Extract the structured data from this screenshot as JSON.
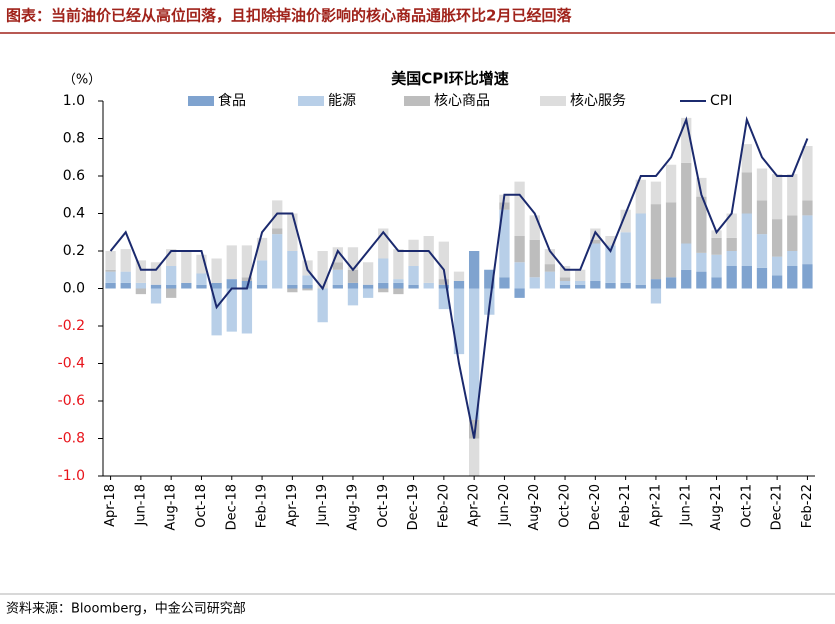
{
  "header": "图表：当前油价已经从高位回落，且扣除掉油价影响的核心商品通胀环比2月已经回落",
  "source": "资料来源：Bloomberg，中金公司研究部",
  "chart_data": {
    "type": "bar",
    "title": "美国CPI环比增速",
    "y_unit": "（%）",
    "categories": [
      "Apr-18",
      null,
      "Jun-18",
      null,
      "Aug-18",
      null,
      "Oct-18",
      null,
      "Dec-18",
      null,
      "Feb-19",
      null,
      "Apr-19",
      null,
      "Jun-19",
      null,
      "Aug-19",
      null,
      "Oct-19",
      null,
      "Dec-19",
      null,
      "Feb-20",
      null,
      "Apr-20",
      null,
      "Jun-20",
      null,
      "Aug-20",
      null,
      "Oct-20",
      null,
      "Dec-20",
      null,
      "Feb-21",
      null,
      "Apr-21",
      null,
      "Jun-21",
      null,
      "Aug-21",
      null,
      "Oct-21",
      null,
      "Dec-21",
      null,
      "Feb-22"
    ],
    "series": [
      {
        "name": "食品",
        "kind": "bar",
        "color": "#7fa3cf",
        "values": [
          0.03,
          0.03,
          0,
          0.02,
          0.02,
          0.03,
          0.02,
          0.03,
          0.05,
          0.04,
          0.02,
          0,
          0.02,
          0.02,
          0,
          0.02,
          0.03,
          0.02,
          0.03,
          0.03,
          0.02,
          0,
          0.02,
          0.04,
          0.2,
          0.1,
          0.06,
          -0.05,
          0,
          0,
          0.02,
          0.02,
          0.04,
          0.03,
          0.03,
          0.02,
          0.05,
          0.06,
          0.1,
          0.09,
          0.06,
          0.12,
          0.12,
          0.11,
          0.07,
          0.12,
          0.13
        ]
      },
      {
        "name": "能源",
        "kind": "bar",
        "color": "#b8cfe8",
        "values": [
          0.06,
          0.06,
          0.03,
          -0.08,
          0.1,
          0,
          0.06,
          -0.25,
          -0.23,
          -0.24,
          0.13,
          0.29,
          0.18,
          0.05,
          -0.18,
          0.08,
          -0.09,
          -0.05,
          0.13,
          0.02,
          0.1,
          0.03,
          -0.11,
          -0.35,
          -0.7,
          -0.14,
          0.36,
          0.14,
          0.06,
          0.09,
          0.02,
          0.02,
          0.2,
          0.2,
          0.27,
          0.38,
          -0.08,
          0,
          0.14,
          0.1,
          0.12,
          0.08,
          0.28,
          0.18,
          0.1,
          0.08,
          0.26
        ]
      },
      {
        "name": "核心商品",
        "kind": "bar",
        "color": "#bdbdbd",
        "values": [
          0.01,
          0,
          -0.03,
          0,
          -0.05,
          0,
          0,
          0,
          0,
          0.02,
          0,
          0.03,
          -0.02,
          -0.01,
          0,
          0.04,
          0.07,
          0,
          -0.02,
          -0.03,
          0,
          0,
          0.03,
          0,
          -0.1,
          0,
          0.04,
          0.14,
          0.2,
          0.04,
          0.02,
          0,
          0.02,
          0,
          0,
          0,
          0.4,
          0.4,
          0.43,
          0.3,
          0.09,
          0.07,
          0.22,
          0.18,
          0.2,
          0.19,
          0.08
        ]
      },
      {
        "name": "核心服务",
        "kind": "bar",
        "color": "#dddddd",
        "values": [
          0.1,
          0.12,
          0.12,
          0.12,
          0.09,
          0.17,
          0.1,
          0.13,
          0.18,
          0.17,
          0.12,
          0.15,
          0.2,
          0.08,
          0.2,
          0.08,
          0.12,
          0.12,
          0.16,
          0.16,
          0.14,
          0.25,
          0.2,
          0.05,
          -0.2,
          0,
          0.04,
          0.29,
          0.13,
          0.08,
          0.06,
          0.06,
          0.06,
          0.05,
          0.12,
          0.18,
          0.12,
          0.2,
          0.24,
          0.1,
          0.04,
          0.13,
          0.15,
          0.17,
          0.24,
          0.22,
          0.29
        ]
      },
      {
        "name": "CPI",
        "kind": "line",
        "color": "#1b2a6e",
        "values": [
          0.2,
          0.3,
          0.1,
          0.1,
          0.2,
          0.2,
          0.2,
          -0.1,
          0,
          0,
          0.3,
          0.4,
          0.4,
          0.1,
          0,
          0.2,
          0.1,
          0.2,
          0.3,
          0.2,
          0.2,
          0.2,
          0.1,
          -0.4,
          -0.8,
          -0.1,
          0.5,
          0.5,
          0.4,
          0.2,
          0.1,
          0.1,
          0.3,
          0.2,
          0.4,
          0.6,
          0.6,
          0.7,
          0.9,
          0.5,
          0.3,
          0.4,
          0.9,
          0.7,
          0.6,
          0.6,
          0.8
        ]
      }
    ],
    "ylim": [
      -1,
      1
    ],
    "yticks": [
      {
        "value": 1,
        "label": "1.0"
      },
      0.8,
      0.6,
      0.4,
      0.2,
      {
        "value": 0,
        "label": "0.0"
      },
      -0.2,
      -0.4,
      -0.6,
      -0.8,
      {
        "value": -1,
        "label": "-1.0"
      }
    ],
    "negative_tick_color": "#e8141b"
  }
}
